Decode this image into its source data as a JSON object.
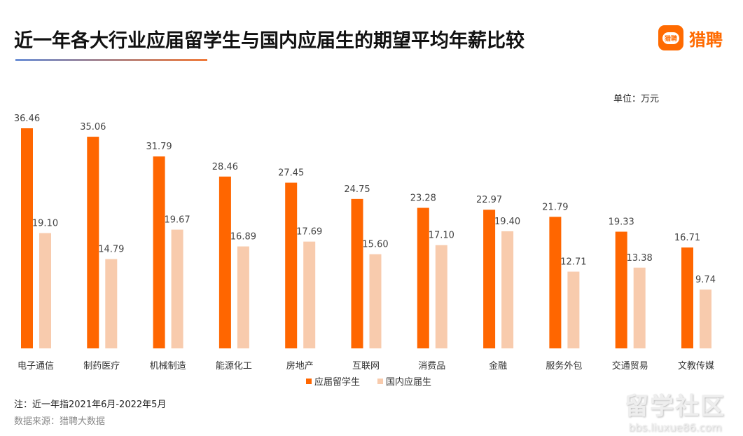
{
  "title": "近一年各大行业应届留学生与国内应届生的期望平均年薪比较",
  "logo": {
    "icon_text": "猎聘",
    "text": "猎聘"
  },
  "unit": "单位：万元",
  "note": "注：近一年指2021年6月-2022年5月",
  "source": "数据来源：猎聘大数据",
  "watermark": {
    "line1": "留学社区",
    "line2": "bbs.liuxue86.com"
  },
  "chart_data": {
    "type": "bar",
    "title": "近一年各大行业应届留学生与国内应届生的期望平均年薪比较",
    "ylabel": "单位：万元",
    "ylim": [
      0,
      36.46
    ],
    "grid": false,
    "legend_position": "bottom",
    "categories": [
      "电子通信",
      "制药医疗",
      "机械制造",
      "能源化工",
      "房地产",
      "互联网",
      "消费品",
      "金融",
      "服务外包",
      "交通贸易",
      "文教传媒"
    ],
    "series": [
      {
        "name": "应届留学生",
        "color": "#ff6600",
        "values": [
          36.46,
          35.06,
          31.79,
          28.46,
          27.45,
          24.75,
          23.28,
          22.97,
          21.79,
          19.33,
          16.71
        ]
      },
      {
        "name": "国内应届生",
        "color": "#f8cbad",
        "values": [
          19.1,
          14.79,
          19.67,
          16.89,
          17.69,
          15.6,
          17.1,
          19.4,
          12.71,
          13.38,
          9.74
        ]
      }
    ]
  }
}
